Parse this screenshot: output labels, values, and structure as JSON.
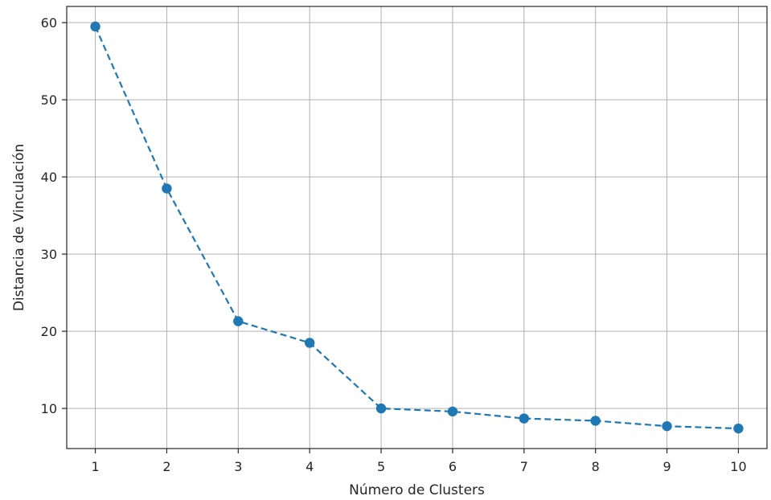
{
  "chart_data": {
    "type": "line",
    "title": "",
    "xlabel": "Número de Clusters",
    "ylabel": "Distancia de Vinculación",
    "x": [
      1,
      2,
      3,
      4,
      5,
      6,
      7,
      8,
      9,
      10
    ],
    "series": [
      {
        "values": [
          59.5,
          38.5,
          21.3,
          18.5,
          10.0,
          9.6,
          8.7,
          8.4,
          7.7,
          7.4
        ],
        "color": "#1f77b4",
        "line_style": "dashed",
        "marker": "circle"
      }
    ],
    "xticks": [
      "1",
      "2",
      "3",
      "4",
      "5",
      "6",
      "7",
      "8",
      "9",
      "10"
    ],
    "yticks": [
      "10",
      "20",
      "30",
      "40",
      "50",
      "60"
    ],
    "xlim": [
      0.6,
      10.4
    ],
    "ylim": [
      4.8,
      62.1
    ],
    "grid": true,
    "legend": "none"
  }
}
